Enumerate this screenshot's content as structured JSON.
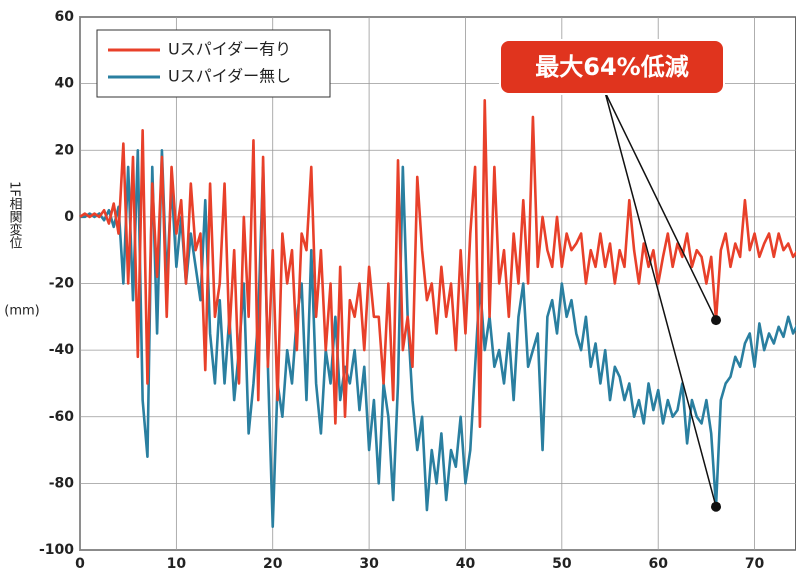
{
  "chart_data": {
    "type": "line",
    "y_label": "1F相関変位",
    "y_unit": "(mm)",
    "annotation": "最大64%低減",
    "x": [
      0,
      0.5,
      1,
      1.5,
      2,
      2.5,
      3,
      3.5,
      4,
      4.5,
      5,
      5.5,
      6,
      6.5,
      7,
      7.5,
      8,
      8.5,
      9,
      9.5,
      10,
      10.5,
      11,
      11.5,
      12,
      12.5,
      13,
      13.5,
      14,
      14.5,
      15,
      15.5,
      16,
      16.5,
      17,
      17.5,
      18,
      18.5,
      19,
      19.5,
      20,
      20.5,
      21,
      21.5,
      22,
      22.5,
      23,
      23.5,
      24,
      24.5,
      25,
      25.5,
      26,
      26.5,
      27,
      27.5,
      28,
      28.5,
      29,
      29.5,
      30,
      30.5,
      31,
      31.5,
      32,
      32.5,
      33,
      33.5,
      34,
      34.5,
      35,
      35.5,
      36,
      36.5,
      37,
      37.5,
      38,
      38.5,
      39,
      39.5,
      40,
      40.5,
      41,
      41.5,
      42,
      42.5,
      43,
      43.5,
      44,
      44.5,
      45,
      45.5,
      46,
      46.5,
      47,
      47.5,
      48,
      48.5,
      49,
      49.5,
      50,
      50.5,
      51,
      51.5,
      52,
      52.5,
      53,
      53.5,
      54,
      54.5,
      55,
      55.5,
      56,
      56.5,
      57,
      57.5,
      58,
      58.5,
      59,
      59.5,
      60,
      60.5,
      61,
      61.5,
      62,
      62.5,
      63,
      63.5,
      64,
      64.5,
      65,
      65.5,
      66,
      66.5,
      67,
      67.5,
      68,
      68.5,
      69,
      69.5,
      70,
      70.5,
      71,
      71.5,
      72,
      72.5,
      73,
      73.5,
      74,
      74.5
    ],
    "series": [
      {
        "name": "Uスパイダー有り",
        "color": "#e8402a",
        "values": [
          0,
          1,
          0,
          1,
          0,
          2,
          -2,
          4,
          -5,
          22,
          -20,
          18,
          -42,
          26,
          -50,
          10,
          -18,
          18,
          -30,
          15,
          -5,
          5,
          -20,
          10,
          -10,
          -5,
          -46,
          10,
          -30,
          -20,
          10,
          -35,
          -10,
          -50,
          0,
          -30,
          23,
          -55,
          18,
          -45,
          -10,
          -55,
          -5,
          -20,
          -10,
          -40,
          -5,
          -10,
          15,
          -30,
          -10,
          -40,
          -20,
          -62,
          -15,
          -60,
          -25,
          -30,
          -20,
          -40,
          -15,
          -30,
          -30,
          -50,
          -20,
          -55,
          17,
          -40,
          -30,
          -45,
          12,
          -10,
          -25,
          -20,
          -35,
          -15,
          -30,
          -20,
          -40,
          -10,
          -35,
          -5,
          15,
          -63,
          35,
          -30,
          15,
          -20,
          -10,
          -30,
          -5,
          -20,
          5,
          -20,
          30,
          -15,
          0,
          -10,
          -15,
          0,
          -15,
          -5,
          -10,
          -8,
          -5,
          -20,
          -10,
          -15,
          -5,
          -15,
          -8,
          -20,
          -10,
          -15,
          5,
          -10,
          -20,
          -8,
          -15,
          -10,
          -20,
          -12,
          -5,
          -15,
          -8,
          -12,
          -5,
          -15,
          -10,
          -12,
          -20,
          -12,
          -31,
          -10,
          -5,
          -15,
          -8,
          -12,
          5,
          -10,
          -5,
          -12,
          -8,
          -5,
          -12,
          -5,
          -10,
          -8,
          -12,
          -10
        ]
      },
      {
        "name": "Uスパイダー無し",
        "color": "#2a7fa0",
        "values": [
          0,
          0,
          1,
          0,
          1,
          -1,
          2,
          -3,
          3,
          -20,
          15,
          -25,
          20,
          -55,
          -72,
          15,
          -35,
          20,
          -20,
          10,
          -15,
          0,
          -20,
          -5,
          -15,
          -25,
          5,
          -35,
          -50,
          -25,
          -50,
          -30,
          -55,
          -40,
          -20,
          -65,
          -50,
          -30,
          15,
          -45,
          -93,
          -50,
          -60,
          -40,
          -50,
          -30,
          -20,
          -55,
          -10,
          -50,
          -65,
          -40,
          -50,
          -30,
          -55,
          -45,
          -50,
          -40,
          -58,
          -45,
          -70,
          -55,
          -80,
          -50,
          -60,
          -85,
          -50,
          15,
          -30,
          -55,
          -70,
          -60,
          -88,
          -70,
          -80,
          -65,
          -85,
          -70,
          -75,
          -60,
          -80,
          -70,
          -45,
          -20,
          -40,
          -30,
          -45,
          -40,
          -50,
          -35,
          -55,
          -30,
          -20,
          -45,
          -40,
          -35,
          -70,
          -30,
          -25,
          -35,
          -20,
          -30,
          -25,
          -35,
          -40,
          -30,
          -45,
          -38,
          -50,
          -40,
          -55,
          -45,
          -48,
          -55,
          -50,
          -60,
          -55,
          -62,
          -50,
          -58,
          -52,
          -62,
          -55,
          -60,
          -58,
          -50,
          -68,
          -55,
          -60,
          -62,
          -55,
          -65,
          -87,
          -55,
          -50,
          -48,
          -42,
          -45,
          -38,
          -35,
          -45,
          -32,
          -40,
          -35,
          -38,
          -33,
          -36,
          -30,
          -35,
          -32
        ]
      }
    ],
    "xlim": [
      0,
      74.3
    ],
    "xticks": [
      0,
      10,
      20,
      30,
      40,
      50,
      60,
      70
    ],
    "ylim": [
      -100,
      60
    ],
    "yticks": [
      -100,
      -80,
      -60,
      -40,
      -20,
      0,
      20,
      40,
      60
    ],
    "grid": true
  }
}
